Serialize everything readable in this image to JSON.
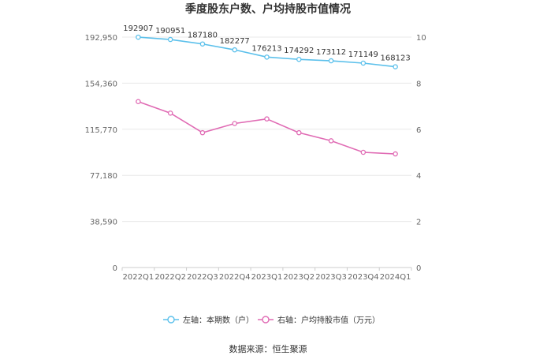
{
  "chart_data": {
    "type": "line",
    "title": "季度股东户数、户均持股市值情况",
    "categories": [
      "2022Q1",
      "2022Q2",
      "2022Q3",
      "2022Q4",
      "2023Q1",
      "2023Q2",
      "2023Q3",
      "2023Q4",
      "2024Q1"
    ],
    "series": [
      {
        "name": "左轴：本期数（户）",
        "axis": "left",
        "color": "#5bc0eb",
        "values": [
          192907,
          190951,
          187180,
          182277,
          176213,
          174292,
          173112,
          171149,
          168123
        ]
      },
      {
        "name": "右轴：户均持股市值（万元）",
        "axis": "right",
        "color": "#e06bb4",
        "values": [
          7.2,
          6.7,
          5.85,
          6.25,
          6.45,
          5.85,
          5.5,
          5.0,
          4.93
        ]
      }
    ],
    "left_axis": {
      "ticks": [
        "0",
        "38,590",
        "77,180",
        "115,770",
        "154,360",
        "192,950"
      ],
      "tick_values": [
        0,
        38590,
        77180,
        115770,
        154360,
        192950
      ],
      "ylim": [
        0,
        192950
      ]
    },
    "right_axis": {
      "ticks": [
        "0",
        "2",
        "4",
        "6",
        "8",
        "10"
      ],
      "tick_values": [
        0,
        2,
        4,
        6,
        8,
        10
      ],
      "ylim": [
        0,
        10
      ]
    },
    "grid": true,
    "legend_position": "bottom",
    "source": "数据来源：恒生聚源"
  }
}
